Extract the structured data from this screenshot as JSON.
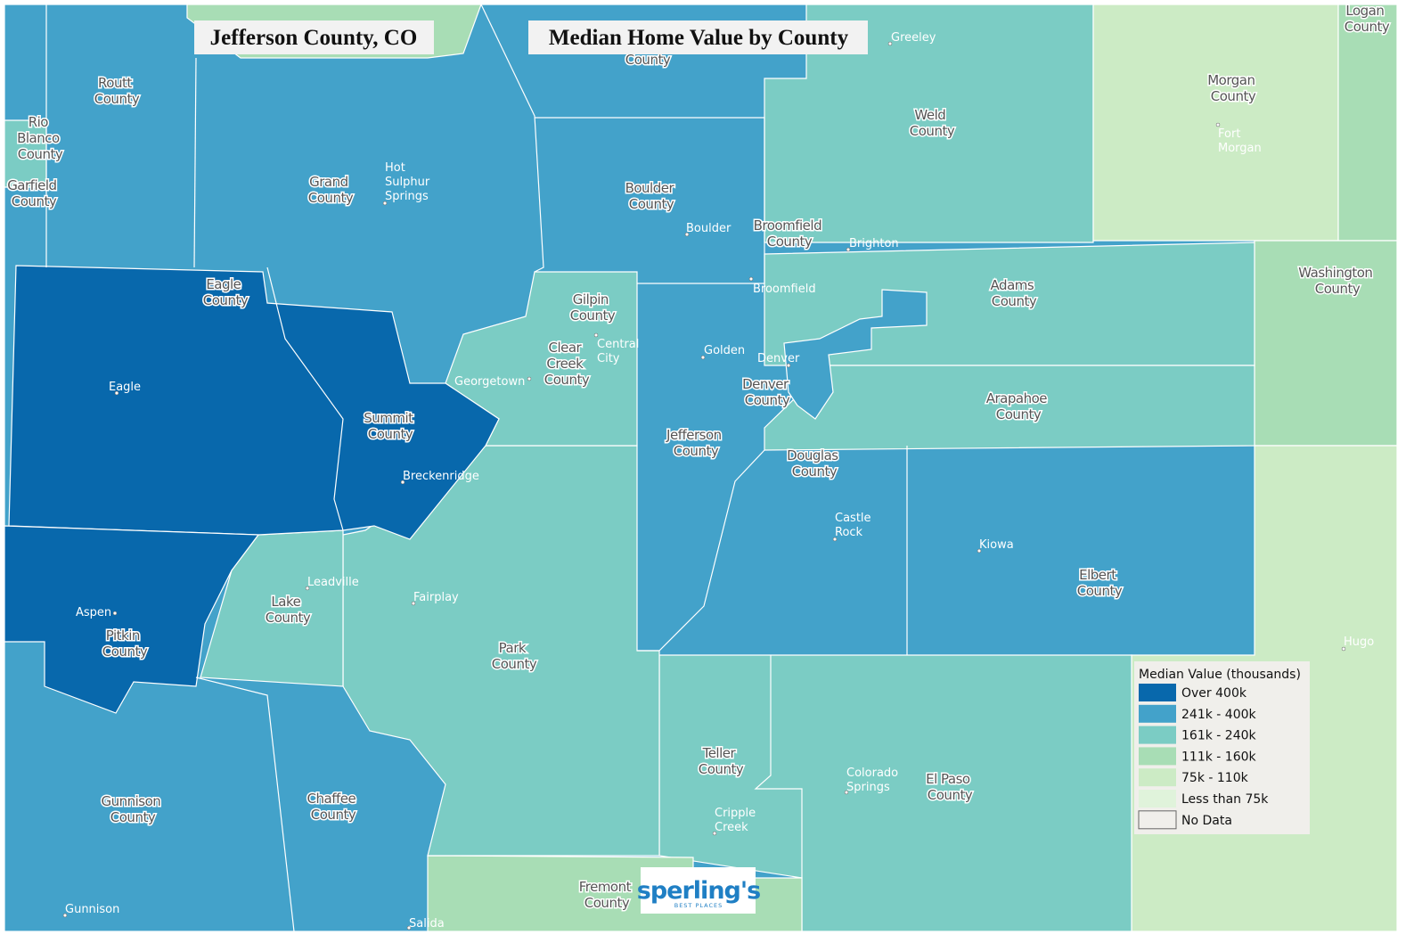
{
  "title": "Jefferson County, CO",
  "subtitle": "Median Home Value by County",
  "counties": [
    "Routt County",
    "Rio Blanco County",
    "Garfield County",
    "Grand County",
    "County",
    "Boulder County",
    "Broomfield County",
    "Weld County",
    "Morgan County",
    "Logan County",
    "Washington County",
    "Eagle County",
    "Gilpin County",
    "Clear Creek County",
    "Adams County",
    "Summit County",
    "Denver County",
    "Arapahoe County",
    "Jefferson County",
    "Douglas County",
    "Elbert County",
    "Lake County",
    "Pitkin County",
    "Park County",
    "Teller County",
    "El Paso County",
    "Gunnison County",
    "Chaffee County",
    "Fremont County"
  ],
  "cities": [
    "Greeley",
    "Hot Sulphur Springs",
    "Boulder",
    "Brighton",
    "Broomfield",
    "Fort Morgan",
    "Central City",
    "Golden",
    "Denver",
    "Georgetown",
    "Eagle",
    "Breckenridge",
    "Castle Rock",
    "Kiowa",
    "Leadville",
    "Fairplay",
    "Aspen",
    "Hugo",
    "Colorado Springs",
    "Cripple Creek",
    "Gunnison",
    "Salida"
  ],
  "legend": {
    "title": "Median Value (thousands)",
    "items": [
      {
        "label": "Over 400k",
        "color": "#0868ac"
      },
      {
        "label": "241k - 400k",
        "color": "#43a2ca"
      },
      {
        "label": "161k - 240k",
        "color": "#7bccc4"
      },
      {
        "label": "111k - 160k",
        "color": "#a8ddb5"
      },
      {
        "label": "75k - 110k",
        "color": "#ccebc5"
      },
      {
        "label": "Less than 75k",
        "color": "#e0f3db"
      },
      {
        "label": "No Data",
        "color": "#f0efeb"
      }
    ]
  },
  "logo": {
    "name": "sperling's",
    "tagline": "BEST PLACES"
  }
}
